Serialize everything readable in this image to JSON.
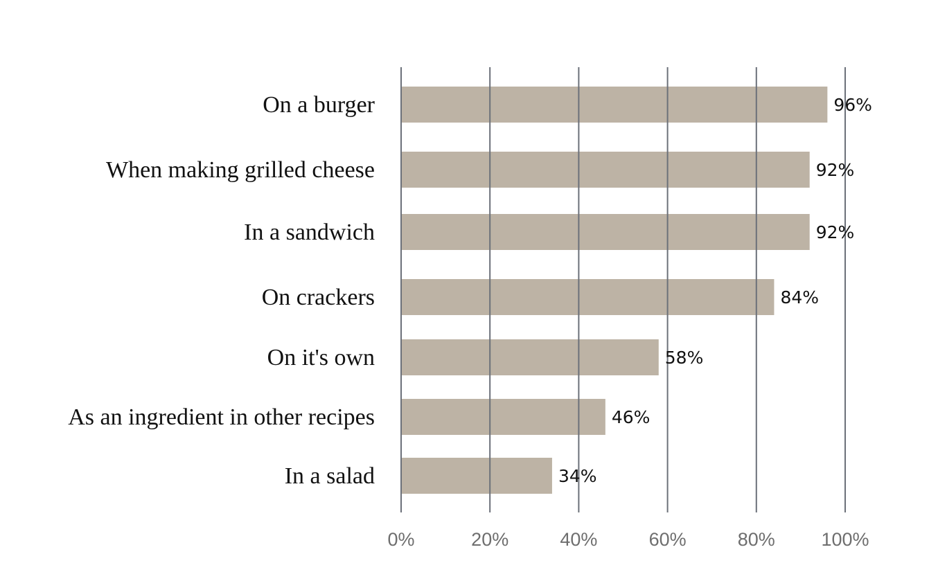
{
  "chart_data": {
    "type": "bar",
    "orientation": "horizontal",
    "categories": [
      "On a burger",
      "When making grilled cheese",
      "In a sandwich",
      "On crackers",
      "On it's own",
      "As an ingredient in other recipes",
      "In a salad"
    ],
    "values": [
      96,
      92,
      92,
      84,
      58,
      46,
      34
    ],
    "value_labels": [
      "96%",
      "92%",
      "92%",
      "84%",
      "58%",
      "46%",
      "34%"
    ],
    "x_ticks": [
      0,
      20,
      40,
      60,
      80,
      100
    ],
    "x_tick_labels": [
      "0%",
      "20%",
      "40%",
      "60%",
      "80%",
      "100%"
    ],
    "xlim": [
      0,
      100
    ],
    "grid": true,
    "legend": "none",
    "title": "",
    "xlabel": "",
    "ylabel": "",
    "colors": {
      "bar": "#bdb3a5",
      "grid": "#6b7079",
      "category_text": "#111111",
      "value_text": "#111111",
      "tick_text": "#6e6e6e"
    }
  }
}
